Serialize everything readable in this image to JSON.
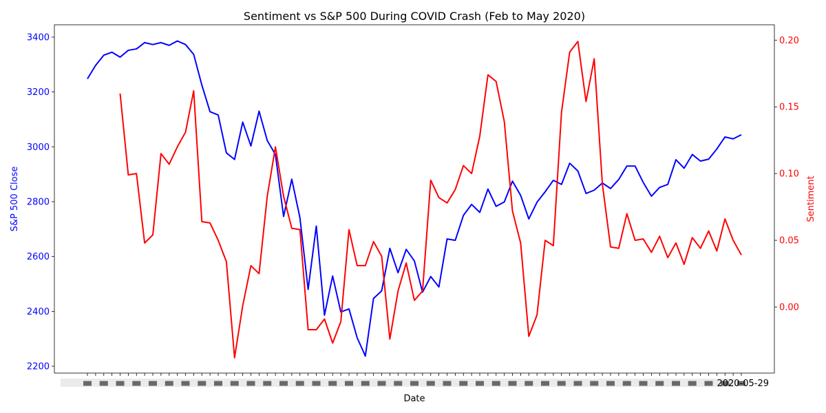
{
  "chart_data": {
    "type": "line",
    "title": "Sentiment vs S&P 500 During COVID Crash (Feb to May 2020)",
    "xlabel": "Date",
    "y_left_label": "S&P 500 Close",
    "y_right_label": "Sentiment",
    "left_axis_color": "#0000ff",
    "right_axis_color": "#ff0000",
    "left_ticks": [
      2200,
      2400,
      2600,
      2800,
      3000,
      3200,
      3400
    ],
    "left_ylim": [
      2175,
      3445
    ],
    "right_ticks": [
      0.0,
      0.05,
      0.1,
      0.15,
      0.2
    ],
    "right_tick_labels": [
      "0.00",
      "0.05",
      "0.10",
      "0.15",
      "0.20"
    ],
    "right_ylim": [
      -0.0495,
      0.2115
    ],
    "grid": false,
    "last_x_label": "2020-05-29",
    "sp500_values": [
      3248,
      3297,
      3334,
      3345,
      3327,
      3352,
      3357,
      3380,
      3373,
      3380,
      3370,
      3386,
      3373,
      3337,
      3225,
      3128,
      3116,
      2978,
      2954,
      3090,
      3003,
      3130,
      3023,
      2972,
      2746,
      2882,
      2741,
      2480,
      2711,
      2386,
      2529,
      2398,
      2409,
      2304,
      2237,
      2447,
      2475,
      2630,
      2541,
      2626,
      2584,
      2470,
      2527,
      2489,
      2664,
      2659,
      2750,
      2790,
      2761,
      2846,
      2783,
      2799,
      2875,
      2823,
      2737,
      2798,
      2836,
      2878,
      2863,
      2940,
      2912,
      2830,
      2842,
      2868,
      2848,
      2881,
      2930,
      2930,
      2870,
      2820,
      2852,
      2863,
      2953,
      2922,
      2972,
      2948,
      2955,
      2992,
      3036,
      3029,
      3044
    ],
    "sentiment_start_index": 4,
    "sentiment_values": [
      0.16,
      0.099,
      0.1,
      0.048,
      0.054,
      0.115,
      0.107,
      0.12,
      0.131,
      0.162,
      0.064,
      0.063,
      0.05,
      0.034,
      -0.038,
      0.001,
      0.031,
      0.025,
      0.083,
      0.12,
      0.083,
      0.059,
      0.058,
      -0.017,
      -0.017,
      -0.009,
      -0.027,
      -0.011,
      0.058,
      0.031,
      0.031,
      0.049,
      0.038,
      -0.024,
      0.012,
      0.033,
      0.005,
      0.012,
      0.095,
      0.082,
      0.078,
      0.088,
      0.106,
      0.1,
      0.128,
      0.174,
      0.169,
      0.139,
      0.072,
      0.048,
      -0.022,
      -0.006,
      0.05,
      0.046,
      0.146,
      0.191,
      0.199,
      0.154,
      0.186,
      0.092,
      0.045,
      0.044,
      0.07,
      0.05,
      0.051,
      0.041,
      0.053,
      0.037,
      0.048,
      0.032,
      0.052,
      0.044,
      0.057,
      0.042,
      0.066,
      0.05,
      0.039
    ]
  }
}
